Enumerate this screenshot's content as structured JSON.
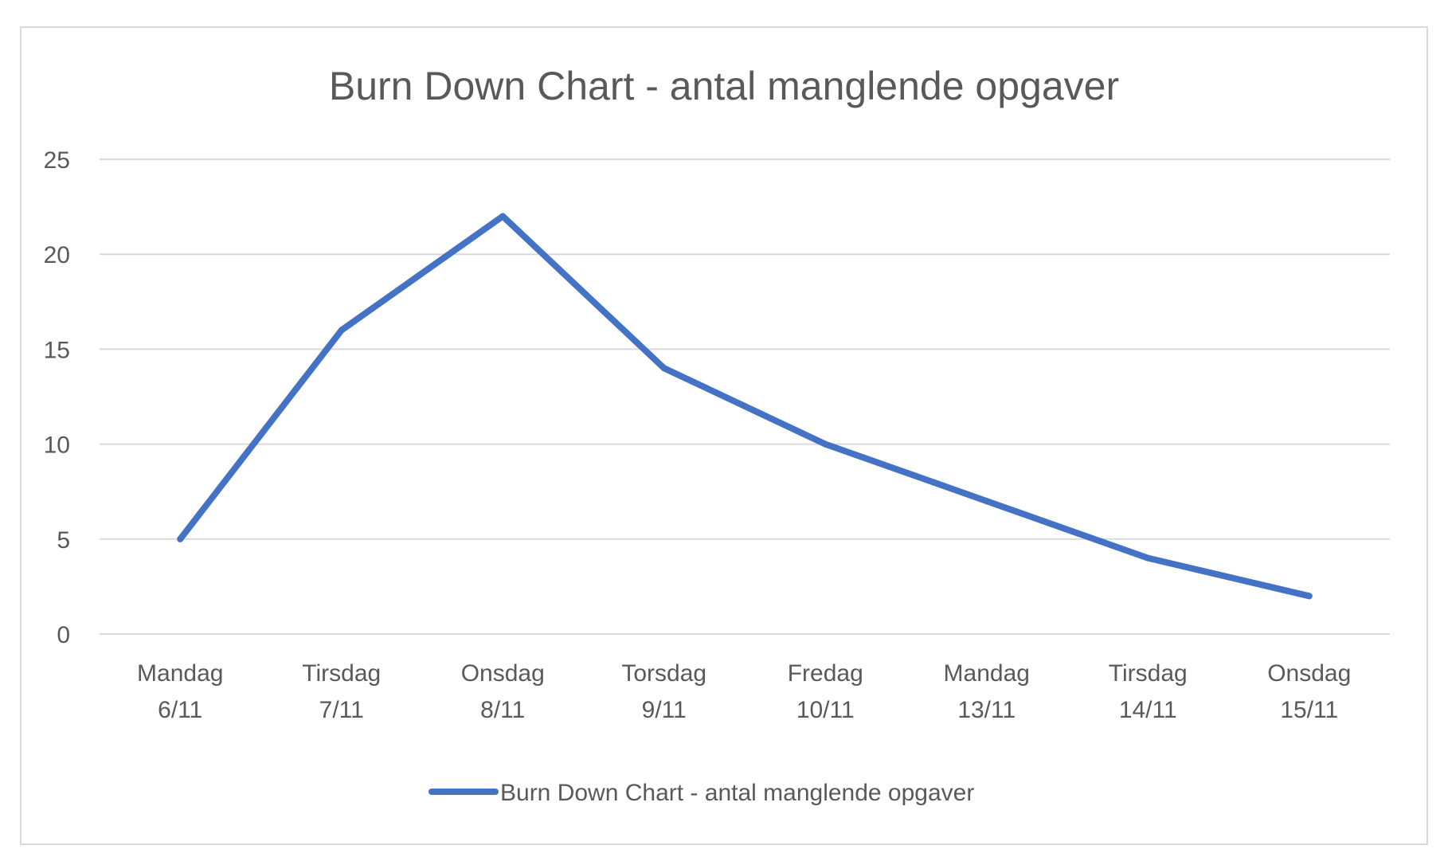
{
  "chart_data": {
    "type": "line",
    "title": "Burn Down Chart - antal manglende opgaver",
    "xlabel": "",
    "ylabel": "",
    "categories": [
      [
        "Mandag",
        "6/11"
      ],
      [
        "Tirsdag",
        "7/11"
      ],
      [
        "Onsdag",
        "8/11"
      ],
      [
        "Torsdag",
        "9/11"
      ],
      [
        "Fredag",
        "10/11"
      ],
      [
        "Mandag",
        "13/11"
      ],
      [
        "Tirsdag",
        "14/11"
      ],
      [
        "Onsdag",
        "15/11"
      ]
    ],
    "series": [
      {
        "name": "Burn Down Chart - antal manglende opgaver",
        "color": "#4472c4",
        "values": [
          5,
          16,
          22,
          14,
          10,
          7,
          4,
          2
        ]
      }
    ],
    "ylim": [
      0,
      25
    ],
    "yticks": [
      0,
      5,
      10,
      15,
      20,
      25
    ],
    "grid": true,
    "gridColor": "#d9d9d9",
    "legend": "bottom"
  }
}
